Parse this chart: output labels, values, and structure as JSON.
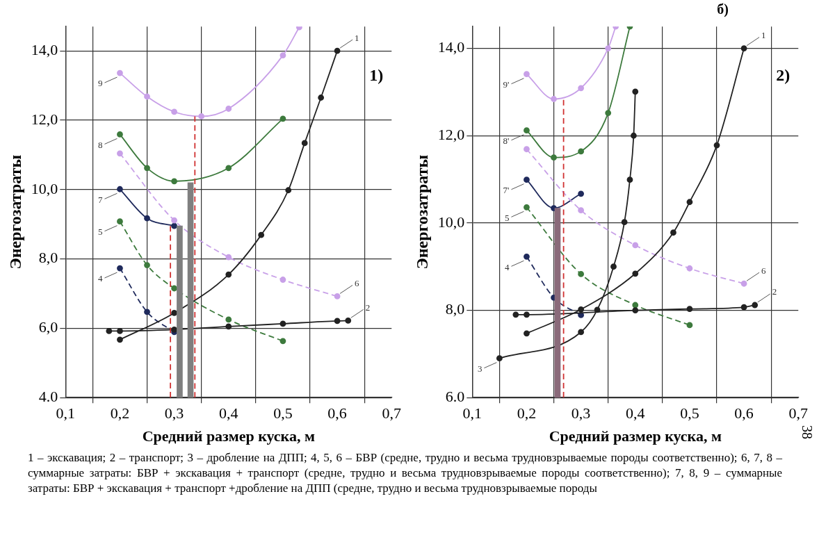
{
  "chart_data": [
    {
      "type": "line",
      "title": "1)",
      "xlabel": "Средний размер куска, м",
      "ylabel": "Энергозатраты",
      "xlim": [
        0.1,
        0.7
      ],
      "ylim": [
        4,
        14.7
      ],
      "xticks": [
        {
          "value": 0.1,
          "label": "0,1"
        },
        {
          "value": 0.2,
          "label": "0,2"
        },
        {
          "value": 0.3,
          "label": "0,3"
        },
        {
          "value": 0.4,
          "label": "0,4"
        },
        {
          "value": 0.5,
          "label": "0,5"
        },
        {
          "value": 0.6,
          "label": "0,6"
        },
        {
          "value": 0.7,
          "label": "0,7"
        }
      ],
      "yticks": [
        {
          "value": 4,
          "label": "4.0"
        },
        {
          "value": 6,
          "label": "6,0"
        },
        {
          "value": 8,
          "label": "8,0"
        },
        {
          "value": 10,
          "label": "10,0"
        },
        {
          "value": 12,
          "label": "12,0"
        },
        {
          "value": 14,
          "label": "14,0"
        }
      ],
      "grid": true,
      "marker": "circle",
      "series": [
        {
          "type": "bar",
          "color": "#7f7f7f",
          "x": [
            0.31,
            0.33
          ],
          "values": [
            8.95,
            10.2
          ]
        },
        {
          "type": "line",
          "color": "#d03030",
          "line_style": "dashed",
          "marker": "none",
          "x": [
            0.293,
            0.293
          ],
          "values": [
            4,
            8.95
          ]
        },
        {
          "type": "line",
          "color": "#d03030",
          "line_style": "dashed",
          "marker": "none",
          "x": [
            0.338,
            0.338
          ],
          "values": [
            4,
            12.11
          ]
        },
        {
          "name": "1",
          "color": "#222222",
          "line_style": "solid",
          "x": [
            0.2,
            0.3,
            0.4,
            0.46,
            0.51,
            0.54,
            0.57,
            0.6
          ],
          "values": [
            5.67,
            6.44,
            7.55,
            8.69,
            9.98,
            11.34,
            12.65,
            14.0
          ]
        },
        {
          "name": "2",
          "color": "#222222",
          "line_style": "solid",
          "x": [
            0.18,
            0.2,
            0.3,
            0.4,
            0.5,
            0.6,
            0.62
          ],
          "values": [
            5.92,
            5.92,
            5.96,
            6.05,
            6.13,
            6.21,
            6.22
          ]
        },
        {
          "name": "4",
          "color": "#1f2a5c",
          "line_style": "dashed",
          "x": [
            0.2,
            0.25,
            0.3
          ],
          "values": [
            7.73,
            6.47,
            5.89
          ]
        },
        {
          "name": "5",
          "color": "#3d7a3d",
          "line_style": "dashed",
          "x": [
            0.2,
            0.25,
            0.3,
            0.4,
            0.5
          ],
          "values": [
            9.08,
            7.82,
            7.15,
            6.25,
            5.63
          ]
        },
        {
          "name": "6",
          "color": "#c8a0e8",
          "line_style": "dashed",
          "x": [
            0.2,
            0.3,
            0.4,
            0.5,
            0.6
          ],
          "values": [
            11.04,
            9.11,
            8.05,
            7.4,
            6.92
          ]
        },
        {
          "name": "7",
          "color": "#1f2a5c",
          "line_style": "solid",
          "x": [
            0.2,
            0.25,
            0.3
          ],
          "values": [
            10.01,
            9.17,
            8.95
          ]
        },
        {
          "name": "8",
          "color": "#3d7a3d",
          "line_style": "solid",
          "x": [
            0.2,
            0.25,
            0.3,
            0.4,
            0.5
          ],
          "values": [
            11.59,
            10.62,
            10.24,
            10.62,
            12.04
          ]
        },
        {
          "name": "9",
          "color": "#c8a0e8",
          "line_style": "solid",
          "x": [
            0.2,
            0.25,
            0.3,
            0.35,
            0.4,
            0.5,
            0.53
          ],
          "values": [
            13.36,
            12.68,
            12.24,
            12.11,
            12.33,
            13.87,
            14.68
          ]
        }
      ],
      "annotations": [
        "1 – экскавация; 2 – транспорт; 3 – дробление на ДПП; 4, 5, 6 – БВР (средне, трудно и весьма трудновзрываемые породы соответственно); 6, 7, 8 – суммарные затраты: БВР + экскавация + транспорт (средне, трудно и весьма трудновзрываемые породы соответственно); 7, 8, 9 – суммарные затраты: БВР + экскавация + транспорт +дробление на ДПП (средне, трудно и весьма трудновзрываемые породы"
      ]
    },
    {
      "type": "line",
      "title": "2)",
      "xlabel": "Средний размер куска, м",
      "ylabel": "Энергозатраты",
      "xlim": [
        0.1,
        0.7
      ],
      "ylim": [
        6,
        14.5
      ],
      "xticks": [
        {
          "value": 0.1,
          "label": "0,1"
        },
        {
          "value": 0.2,
          "label": "0,2"
        },
        {
          "value": 0.3,
          "label": "0,3"
        },
        {
          "value": 0.4,
          "label": "0,4"
        },
        {
          "value": 0.5,
          "label": "0,5"
        },
        {
          "value": 0.6,
          "label": "0,6"
        },
        {
          "value": 0.7,
          "label": "0,7"
        }
      ],
      "yticks": [
        {
          "value": 6,
          "label": "6.0"
        },
        {
          "value": 8,
          "label": "8,0"
        },
        {
          "value": 10,
          "label": "10,0"
        },
        {
          "value": 12,
          "label": "12,0"
        },
        {
          "value": 14,
          "label": "14,0"
        }
      ],
      "grid": true,
      "marker": "circle",
      "series": [
        {
          "type": "bar",
          "color": "#8a6a7a",
          "x": [
            0.257
          ],
          "values": [
            10.34
          ]
        },
        {
          "type": "line",
          "color": "#d03030",
          "line_style": "dashed",
          "marker": "none",
          "x": [
            0.268,
            0.268
          ],
          "values": [
            6,
            12.82
          ]
        },
        {
          "name": "1",
          "color": "#222222",
          "line_style": "solid",
          "x": [
            0.2,
            0.3,
            0.4,
            0.47,
            0.5,
            0.55,
            0.6
          ],
          "values": [
            7.47,
            8.02,
            8.84,
            9.78,
            10.48,
            11.78,
            14.0
          ]
        },
        {
          "name": "2",
          "color": "#222222",
          "line_style": "solid",
          "x": [
            0.18,
            0.2,
            0.4,
            0.5,
            0.6,
            0.62
          ],
          "values": [
            7.9,
            7.9,
            8.0,
            8.03,
            8.07,
            8.12
          ]
        },
        {
          "name": "3",
          "color": "#222222",
          "line_style": "solid",
          "x": [
            0.15,
            0.3,
            0.33,
            0.36,
            0.38,
            0.39,
            0.397,
            0.4
          ],
          "values": [
            6.9,
            7.5,
            8.01,
            9.0,
            10.02,
            10.99,
            12.0,
            13.01
          ]
        },
        {
          "name": "4",
          "color": "#1f2a5c",
          "line_style": "dashed",
          "x": [
            0.2,
            0.25,
            0.3
          ],
          "values": [
            9.23,
            8.29,
            7.89
          ]
        },
        {
          "name": "5",
          "color": "#3d7a3d",
          "line_style": "dashed",
          "x": [
            0.2,
            0.3,
            0.4,
            0.5
          ],
          "values": [
            10.36,
            8.83,
            8.12,
            7.66
          ]
        },
        {
          "name": "6",
          "color": "#c8a0e8",
          "line_style": "dashed",
          "x": [
            0.2,
            0.3,
            0.4,
            0.5,
            0.6
          ],
          "values": [
            11.69,
            10.29,
            9.49,
            8.96,
            8.61
          ]
        },
        {
          "name": "7'",
          "color": "#1f2a5c",
          "line_style": "solid",
          "x": [
            0.2,
            0.25,
            0.3
          ],
          "values": [
            10.99,
            10.34,
            10.67
          ]
        },
        {
          "name": "8'",
          "color": "#3d7a3d",
          "line_style": "solid",
          "x": [
            0.2,
            0.25,
            0.3,
            0.35,
            0.39
          ],
          "values": [
            12.12,
            11.5,
            11.64,
            12.52,
            14.5
          ]
        },
        {
          "name": "9'",
          "color": "#c8a0e8",
          "line_style": "solid",
          "x": [
            0.2,
            0.25,
            0.3,
            0.35,
            0.364
          ],
          "values": [
            13.41,
            12.84,
            13.09,
            14.0,
            14.5
          ]
        }
      ],
      "annotations": [
        "б)",
        "38"
      ]
    }
  ]
}
